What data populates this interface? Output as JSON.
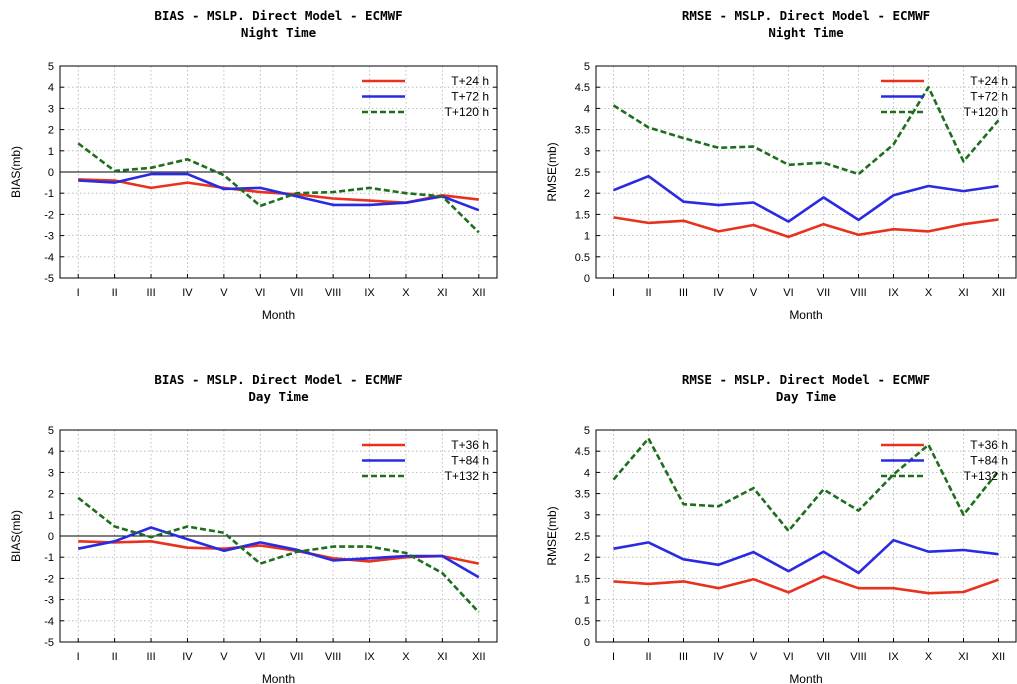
{
  "chart_data": [
    {
      "type": "line",
      "title": "BIAS - MSLP. Direct Model - ECMWF",
      "subtitle": "Night Time",
      "xlabel": "Month",
      "ylabel": "BIAS(mb)",
      "categories": [
        "I",
        "II",
        "III",
        "IV",
        "V",
        "VI",
        "VII",
        "VIII",
        "IX",
        "X",
        "XI",
        "XII"
      ],
      "yticks": [
        "-5",
        "-4",
        "-3",
        "-2",
        "-1",
        "0",
        "1",
        "2",
        "3",
        "4",
        "5"
      ],
      "ylim": [
        -5,
        5
      ],
      "zero_line": true,
      "grid": true,
      "legend_position": "top-right",
      "series": [
        {
          "name": "T+24 h",
          "color": "#e8321e",
          "style": "solid",
          "values": [
            -0.35,
            -0.4,
            -0.75,
            -0.5,
            -0.75,
            -0.95,
            -1.05,
            -1.25,
            -1.35,
            -1.45,
            -1.1,
            -1.3
          ]
        },
        {
          "name": "T+72 h",
          "color": "#2a2ae0",
          "style": "solid",
          "values": [
            -0.4,
            -0.5,
            -0.1,
            -0.1,
            -0.8,
            -0.75,
            -1.15,
            -1.55,
            -1.55,
            -1.45,
            -1.15,
            -1.8
          ]
        },
        {
          "name": "T+120 h",
          "color": "#1d6e1d",
          "style": "dashed",
          "values": [
            1.35,
            0.05,
            0.2,
            0.6,
            -0.15,
            -1.6,
            -1.0,
            -0.95,
            -0.75,
            -1.0,
            -1.15,
            -2.85
          ]
        }
      ]
    },
    {
      "type": "line",
      "title": "RMSE - MSLP. Direct Model - ECMWF",
      "subtitle": "Night Time",
      "xlabel": "Month",
      "ylabel": "RMSE(mb)",
      "categories": [
        "I",
        "II",
        "III",
        "IV",
        "V",
        "VI",
        "VII",
        "VIII",
        "IX",
        "X",
        "XI",
        "XII"
      ],
      "yticks": [
        "0",
        "0.5",
        "1",
        "1.5",
        "2",
        "2.5",
        "3",
        "3.5",
        "4",
        "4.5",
        "5"
      ],
      "ylim": [
        0,
        5
      ],
      "zero_line": false,
      "grid": true,
      "legend_position": "top-right",
      "series": [
        {
          "name": "T+24 h",
          "color": "#e8321e",
          "style": "solid",
          "values": [
            1.43,
            1.3,
            1.35,
            1.1,
            1.25,
            0.97,
            1.27,
            1.02,
            1.15,
            1.1,
            1.27,
            1.38
          ]
        },
        {
          "name": "T+72 h",
          "color": "#2a2ae0",
          "style": "solid",
          "values": [
            2.07,
            2.4,
            1.8,
            1.72,
            1.78,
            1.33,
            1.9,
            1.37,
            1.95,
            2.17,
            2.05,
            2.17
          ]
        },
        {
          "name": "T+120 h",
          "color": "#1d6e1d",
          "style": "dashed",
          "values": [
            4.07,
            3.55,
            3.3,
            3.07,
            3.1,
            2.67,
            2.72,
            2.45,
            3.15,
            4.5,
            2.75,
            3.72
          ]
        }
      ]
    },
    {
      "type": "line",
      "title": "BIAS - MSLP. Direct Model - ECMWF",
      "subtitle": "Day Time",
      "xlabel": "Month",
      "ylabel": "BIAS(mb)",
      "categories": [
        "I",
        "II",
        "III",
        "IV",
        "V",
        "VI",
        "VII",
        "VIII",
        "IX",
        "X",
        "XI",
        "XII"
      ],
      "yticks": [
        "-5",
        "-4",
        "-3",
        "-2",
        "-1",
        "0",
        "1",
        "2",
        "3",
        "4",
        "5"
      ],
      "ylim": [
        -5,
        5
      ],
      "zero_line": true,
      "grid": true,
      "legend_position": "top-right",
      "series": [
        {
          "name": "T+36 h",
          "color": "#e8321e",
          "style": "solid",
          "values": [
            -0.25,
            -0.3,
            -0.25,
            -0.55,
            -0.6,
            -0.45,
            -0.7,
            -1.05,
            -1.2,
            -1.0,
            -0.95,
            -1.3
          ]
        },
        {
          "name": "T+84 h",
          "color": "#2a2ae0",
          "style": "solid",
          "values": [
            -0.6,
            -0.25,
            0.4,
            -0.15,
            -0.7,
            -0.3,
            -0.65,
            -1.15,
            -1.05,
            -0.95,
            -0.95,
            -1.95
          ]
        },
        {
          "name": "T+132 h",
          "color": "#1d6e1d",
          "style": "dashed",
          "values": [
            1.8,
            0.45,
            -0.05,
            0.45,
            0.15,
            -1.3,
            -0.75,
            -0.5,
            -0.5,
            -0.8,
            -1.75,
            -3.6
          ]
        }
      ]
    },
    {
      "type": "line",
      "title": "RMSE - MSLP. Direct Model - ECMWF",
      "subtitle": "Day Time",
      "xlabel": "Month",
      "ylabel": "RMSE(mb)",
      "categories": [
        "I",
        "II",
        "III",
        "IV",
        "V",
        "VI",
        "VII",
        "VIII",
        "IX",
        "X",
        "XI",
        "XII"
      ],
      "yticks": [
        "0",
        "0.5",
        "1",
        "1.5",
        "2",
        "2.5",
        "3",
        "3.5",
        "4",
        "4.5",
        "5"
      ],
      "ylim": [
        0,
        5
      ],
      "zero_line": false,
      "grid": true,
      "legend_position": "top-right",
      "series": [
        {
          "name": "T+36 h",
          "color": "#e8321e",
          "style": "solid",
          "values": [
            1.43,
            1.37,
            1.43,
            1.27,
            1.48,
            1.17,
            1.55,
            1.27,
            1.27,
            1.15,
            1.18,
            1.47
          ]
        },
        {
          "name": "T+84 h",
          "color": "#2a2ae0",
          "style": "solid",
          "values": [
            2.2,
            2.35,
            1.95,
            1.82,
            2.12,
            1.67,
            2.13,
            1.63,
            2.4,
            2.13,
            2.17,
            2.07
          ]
        },
        {
          "name": "T+132 h",
          "color": "#1d6e1d",
          "style": "dashed",
          "values": [
            3.83,
            4.8,
            3.25,
            3.2,
            3.63,
            2.62,
            3.6,
            3.1,
            3.95,
            4.65,
            3.0,
            4.03
          ]
        }
      ]
    }
  ]
}
